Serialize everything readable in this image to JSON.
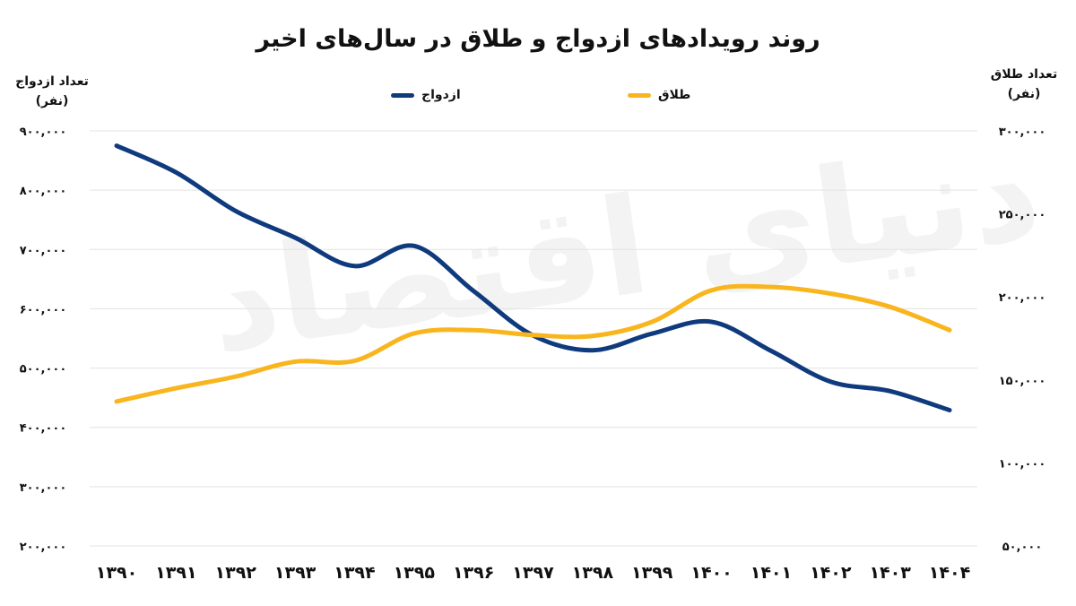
{
  "page": {
    "title": "روند رویدادهای ازدواج و طلاق در سال‌های اخیر",
    "watermark": "دنیای اقتصاد"
  },
  "chart_data": {
    "type": "line",
    "title": "روند رویدادهای ازدواج و طلاق در سال‌های اخیر",
    "categories": [
      "۱۳۹۰",
      "۱۳۹۱",
      "۱۳۹۲",
      "۱۳۹۳",
      "۱۳۹۴",
      "۱۳۹۵",
      "۱۳۹۶",
      "۱۳۹۷",
      "۱۳۹۸",
      "۱۳۹۹",
      "۱۴۰۰",
      "۱۴۰۱",
      "۱۴۰۲",
      "۱۴۰۳",
      "۱۴۰۴"
    ],
    "y_left": {
      "label": "تعداد ازدواج (نفر)",
      "ylim": [
        200000,
        900000
      ],
      "ticks": [
        900000,
        800000,
        700000,
        600000,
        500000,
        400000,
        300000,
        200000
      ],
      "tick_labels": [
        "۹۰۰,۰۰۰",
        "۸۰۰,۰۰۰",
        "۷۰۰,۰۰۰",
        "۶۰۰,۰۰۰",
        "۵۰۰,۰۰۰",
        "۴۰۰,۰۰۰",
        "۳۰۰,۰۰۰",
        "۲۰۰,۰۰۰"
      ]
    },
    "y_right": {
      "label": "تعداد طلاق (نفر)",
      "ylim": [
        50000,
        300000
      ],
      "ticks": [
        300000,
        250000,
        200000,
        150000,
        100000,
        50000
      ],
      "tick_labels": [
        "۳۰۰,۰۰۰",
        "۲۵۰,۰۰۰",
        "۲۰۰,۰۰۰",
        "۱۵۰,۰۰۰",
        "۱۰۰,۰۰۰",
        "۵۰,۰۰۰"
      ]
    },
    "series": [
      {
        "name": "ازدواج",
        "axis": "left",
        "color": "#0f3a7d",
        "values": [
          875000,
          830000,
          765000,
          720000,
          672000,
          706000,
          630000,
          555000,
          530000,
          558000,
          578000,
          529000,
          477000,
          461000,
          429000
        ]
      },
      {
        "name": "طلاق",
        "axis": "right",
        "color": "#f9b51d",
        "values": [
          137000,
          145000,
          152000,
          161000,
          161500,
          178000,
          180000,
          177000,
          176500,
          185000,
          204000,
          206000,
          202000,
          194000,
          180000
        ]
      }
    ],
    "grid": true,
    "legend_position": "top"
  }
}
